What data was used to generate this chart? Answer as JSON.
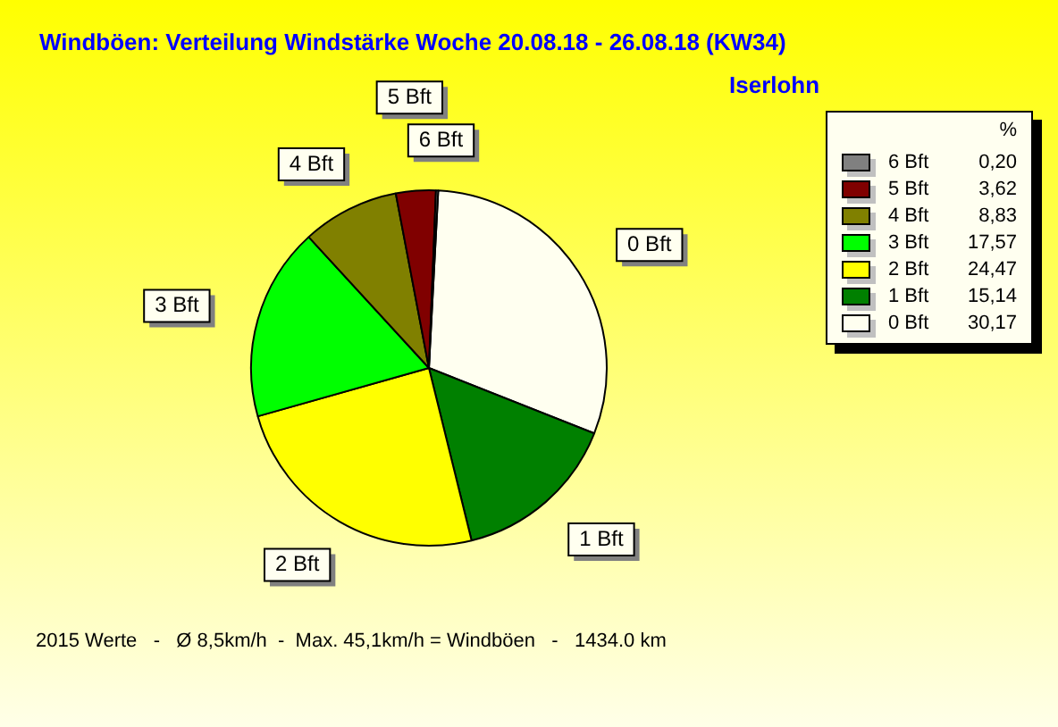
{
  "chart_data": {
    "type": "pie",
    "title": "Windböen: Verteilung Windstärke  Woche 20.08.18 - 26.08.18 (KW34)",
    "subtitle": "Iserlohn",
    "legend_title": "%",
    "categories": [
      "0 Bft",
      "1 Bft",
      "2 Bft",
      "3 Bft",
      "4 Bft",
      "5 Bft",
      "6 Bft"
    ],
    "values": [
      30.17,
      15.14,
      24.47,
      17.57,
      8.83,
      3.62,
      0.2
    ],
    "value_labels": [
      "30,17",
      "15,14",
      "24,47",
      "17,57",
      "8,83",
      "3,62",
      "0,20"
    ],
    "colors": [
      "#fffff0",
      "#008000",
      "#ffff00",
      "#00ff00",
      "#808000",
      "#800000",
      "#808080"
    ],
    "legend": "top right",
    "annotations": [
      "2015 Werte   -   Ø 8,5km/h  -  Max. 45,1km/h = Windböen   -   1434.0 km"
    ]
  }
}
